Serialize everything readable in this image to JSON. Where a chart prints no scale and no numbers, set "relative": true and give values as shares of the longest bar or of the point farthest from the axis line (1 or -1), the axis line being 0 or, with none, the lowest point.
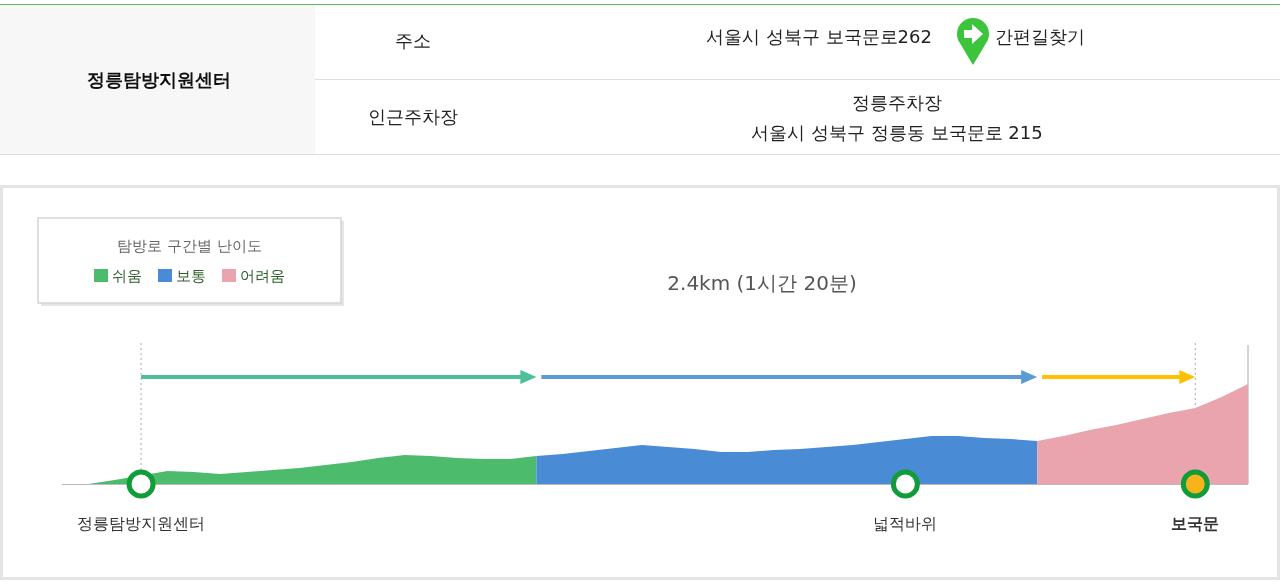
{
  "chart_data": [
    {
      "type": "other",
      "title": "정릉탐방지원센터",
      "annotations": [
        "주소",
        "서울시 성북구 보국문로262",
        "간편길찾기",
        "인근주차장",
        "정릉주차장",
        "서울시 성북구 정릉동 보국문로 215"
      ]
    },
    {
      "type": "area",
      "title": "2.4km (1시간 20분)",
      "legend_title": "탐방로 구간별 난이도",
      "legend": "top left",
      "relative": true,
      "categories": [
        null,
        null,
        null,
        "정릉탐방지원센터",
        null,
        null,
        null,
        null,
        null,
        null,
        null,
        null,
        null,
        null,
        null,
        null,
        null,
        null,
        null,
        null,
        null,
        null,
        null,
        null,
        null,
        null,
        null,
        null,
        null,
        null,
        null,
        null,
        "넓적바위",
        null,
        null,
        null,
        null,
        null,
        null,
        null,
        null,
        null,
        null,
        "보국문",
        null,
        null
      ],
      "series": [
        {
          "name": "쉬움",
          "color": "#4cbb6b",
          "values": [
            0,
            0,
            0.04,
            null,
            0.13,
            0.12,
            0.1,
            0.12,
            0.14,
            0.16,
            0.19,
            0.22,
            0.26,
            0.29,
            0.28,
            0.26,
            0.25,
            0.25,
            0.28,
            null,
            null,
            null,
            null,
            null,
            null,
            null,
            null,
            null,
            null,
            null,
            null,
            null,
            null,
            null,
            null,
            null,
            null,
            null,
            null,
            null,
            null,
            null,
            null,
            null,
            null,
            null
          ]
        },
        {
          "name": "보통",
          "color": "#4a8bd6",
          "values": [
            null,
            null,
            null,
            null,
            null,
            null,
            null,
            null,
            null,
            null,
            null,
            null,
            null,
            null,
            null,
            null,
            null,
            null,
            0.28,
            0.3,
            0.33,
            0.36,
            0.39,
            0.37,
            0.35,
            0.32,
            0.32,
            0.34,
            0.35,
            0.37,
            0.39,
            0.42,
            0.45,
            0.48,
            0.48,
            0.46,
            0.45,
            0.43,
            null,
            null,
            null,
            null,
            null,
            null,
            null,
            null
          ]
        },
        {
          "name": "어려움",
          "color": "#e9a4ae",
          "values": [
            null,
            null,
            null,
            null,
            null,
            null,
            null,
            null,
            null,
            null,
            null,
            null,
            null,
            null,
            null,
            null,
            null,
            null,
            null,
            null,
            null,
            null,
            null,
            null,
            null,
            null,
            null,
            null,
            null,
            null,
            null,
            null,
            null,
            null,
            null,
            null,
            null,
            0.43,
            0.48,
            0.54,
            0.59,
            0.65,
            0.71,
            0.76,
            0.87,
            1
          ]
        },
        {
          "type": "scatter",
          "marker": "circle",
          "x": [
            "정릉탐방지원센터",
            "넓적바위",
            "보국문"
          ],
          "values": [
            0,
            0,
            0
          ],
          "color": "#109c38",
          "colors": [
            "#ffffff",
            "#ffffff",
            "#f8b31c"
          ]
        }
      ],
      "ref_lines": [
        {
          "axis": "x",
          "value": "정릉탐방지원센터",
          "color": "#aaaaaa",
          "line_style": "dotted"
        },
        {
          "axis": "x",
          "value": "보국문",
          "color": "#aaaaaa",
          "line_style": "dotted"
        }
      ]
    }
  ]
}
